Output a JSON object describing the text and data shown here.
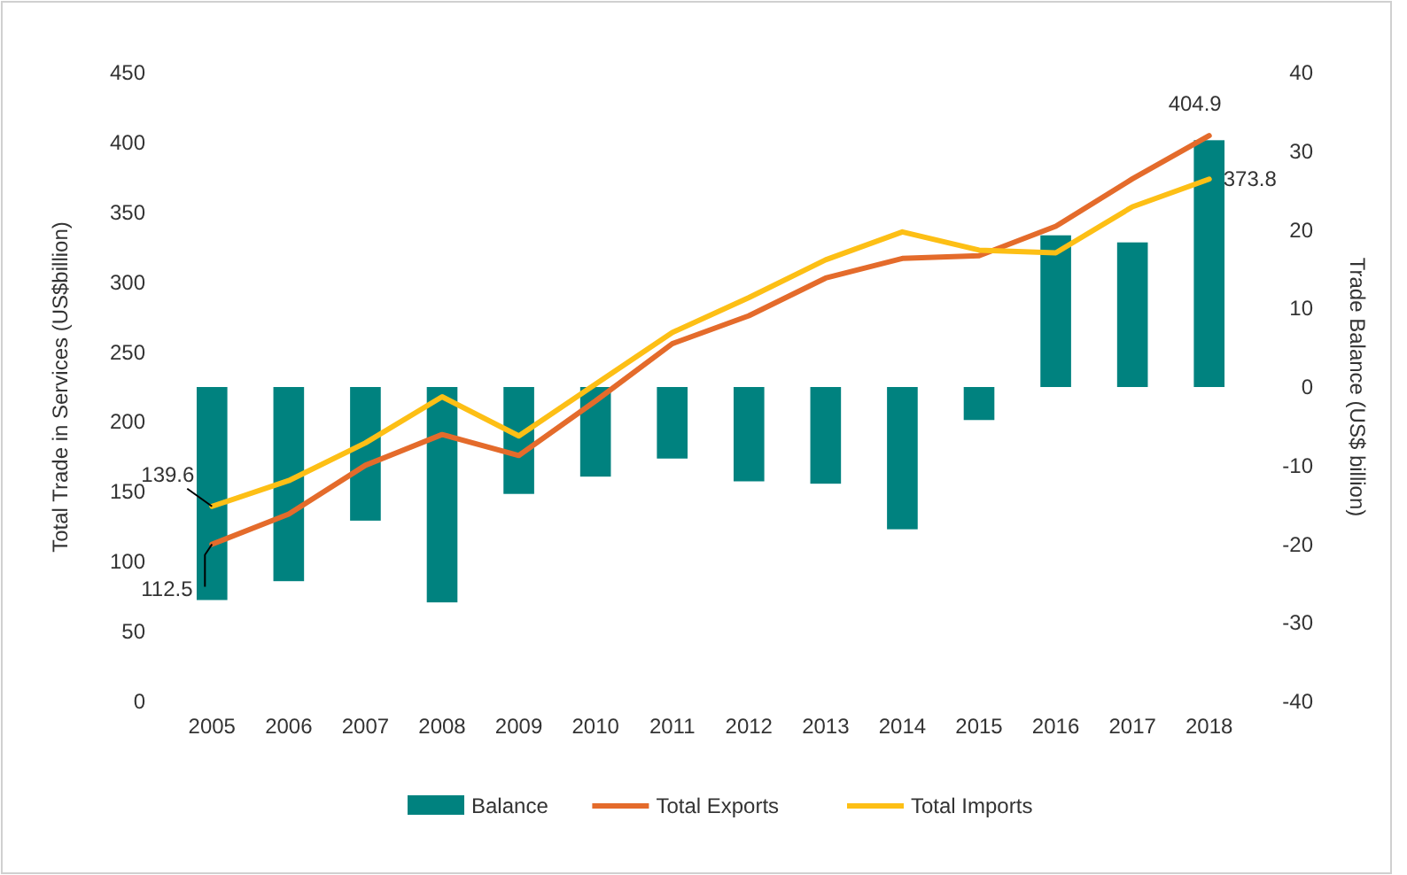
{
  "chart_data": {
    "type": "bar",
    "ylabel": "Total Trade in Services (US$billion)",
    "y2label": "Trade Balance (US$ billion)",
    "categories": [
      "2005",
      "2006",
      "2007",
      "2008",
      "2009",
      "2010",
      "2011",
      "2012",
      "2013",
      "2014",
      "2015",
      "2016",
      "2017",
      "2018"
    ],
    "series": [
      {
        "name": "Balance",
        "axis": "y2",
        "color": "#00827f",
        "values": [
          -27.1,
          -24.7,
          -17,
          -27.4,
          -13.6,
          -11.4,
          -9.1,
          -12,
          -12.3,
          -18.1,
          -4.2,
          19.3,
          18.4,
          31.4
        ]
      },
      {
        "name": "Total Exports",
        "type": "line",
        "color": "#e46b2b",
        "values": [
          112.5,
          134,
          169,
          191,
          176,
          215,
          256,
          276,
          303,
          317,
          319,
          340,
          374,
          404.9
        ]
      },
      {
        "name": "Total Imports",
        "type": "line",
        "color": "#fdbf15",
        "values": [
          139.6,
          158,
          185,
          218,
          190,
          227,
          264,
          289,
          316,
          336,
          323,
          321,
          354,
          373.8
        ]
      }
    ],
    "ylim": [
      0,
      450
    ],
    "yticks": [
      0,
      50,
      100,
      150,
      200,
      250,
      300,
      350,
      400,
      450
    ],
    "y2lim": [
      -40,
      40
    ],
    "y2ticks": [
      -40,
      -30,
      -20,
      -10,
      0,
      10,
      20,
      30,
      40
    ],
    "annotations": [
      {
        "text": "404.9",
        "x": "2018",
        "y": 404.9
      },
      {
        "text": "373.8",
        "x": "2018",
        "y": 373.8
      },
      {
        "text": "139.6",
        "x": "2005",
        "y": 139.6
      },
      {
        "text": "112.5",
        "x": "2005",
        "y": 112.5
      }
    ],
    "legend": "bottom",
    "grid": false
  }
}
